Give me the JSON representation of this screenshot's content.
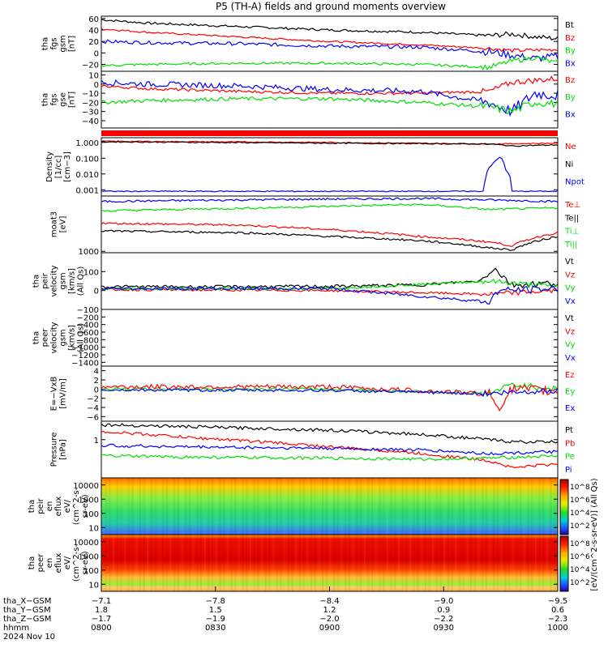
{
  "title": "P5 (TH-A) fields and ground moments overview",
  "colors": {
    "black": "#000000",
    "red": "#ff0000",
    "green": "#00dd00",
    "blue": "#0000ff"
  },
  "panels": [
    {
      "id": "fgs-gsm",
      "ylabel": [
        "tha",
        "fgs",
        "gsm",
        "[nT]"
      ],
      "yticks": [
        "60",
        "40",
        "20",
        "0",
        "−20"
      ],
      "ylim": [
        -32,
        64
      ],
      "tickvals": [
        60,
        40,
        20,
        0,
        -20
      ],
      "legend": [
        {
          "text": "Bt",
          "color": "black"
        },
        {
          "text": "Bz",
          "color": "red"
        },
        {
          "text": "By",
          "color": "green"
        },
        {
          "text": "Bx",
          "color": "blue"
        }
      ],
      "series": [
        {
          "color": "black",
          "x": [
            0,
            0.1,
            0.3,
            0.5,
            0.7,
            0.85,
            0.9,
            0.95,
            1
          ],
          "y": [
            58,
            52,
            46,
            40,
            36,
            30,
            33,
            28,
            25
          ],
          "noise": 2
        },
        {
          "color": "red",
          "x": [
            0,
            0.1,
            0.3,
            0.5,
            0.7,
            0.85,
            0.9,
            0.95,
            1
          ],
          "y": [
            42,
            36,
            28,
            20,
            14,
            8,
            4,
            5,
            6
          ],
          "noise": 1.5
        },
        {
          "color": "blue",
          "x": [
            0,
            0.1,
            0.3,
            0.5,
            0.7,
            0.85,
            0.9,
            0.95,
            1
          ],
          "y": [
            20,
            18,
            16,
            12,
            10,
            2,
            -4,
            -10,
            -6
          ],
          "noise": 3
        },
        {
          "color": "green",
          "x": [
            0,
            0.1,
            0.3,
            0.5,
            0.7,
            0.85,
            0.9,
            0.95,
            1
          ],
          "y": [
            -22,
            -20,
            -18,
            -18,
            -20,
            -25,
            -14,
            -8,
            -18
          ],
          "noise": 2
        }
      ]
    },
    {
      "id": "fgs-gse",
      "ylabel": [
        "tha",
        "fgs",
        "gse",
        "[nT]"
      ],
      "yticks": [
        "10",
        "0",
        "−10",
        "−20",
        "−30",
        "−40"
      ],
      "ylim": [
        -48,
        14
      ],
      "tickvals": [
        10,
        0,
        -10,
        -20,
        -30,
        -40
      ],
      "legend": [
        {
          "text": "Bz",
          "color": "red"
        },
        {
          "text": "By",
          "color": "green"
        },
        {
          "text": "Bx",
          "color": "blue"
        }
      ],
      "series": [
        {
          "color": "red",
          "x": [
            0,
            0.1,
            0.3,
            0.5,
            0.7,
            0.85,
            0.9,
            0.95,
            1
          ],
          "y": [
            -2,
            -5,
            -8,
            -10,
            -10,
            -8,
            2,
            4,
            6
          ],
          "noise": 1.5
        },
        {
          "color": "blue",
          "x": [
            0,
            0.1,
            0.3,
            0.5,
            0.7,
            0.85,
            0.9,
            0.95,
            1
          ],
          "y": [
            2,
            0,
            -2,
            -6,
            -8,
            -20,
            -30,
            -10,
            -12
          ],
          "noise": 3
        },
        {
          "color": "green",
          "x": [
            0,
            0.1,
            0.3,
            0.5,
            0.7,
            0.85,
            0.9,
            0.95,
            1
          ],
          "y": [
            -20,
            -18,
            -16,
            -16,
            -20,
            -25,
            -30,
            -20,
            -22
          ],
          "noise": 2
        }
      ]
    },
    {
      "id": "density",
      "ylabel": [
        "Density",
        "[1/cc]",
        "[cm−3]"
      ],
      "yticks": [
        "1.000",
        "0.100",
        "0.010",
        "0.001"
      ],
      "log": true,
      "ylim": [
        0.0004,
        2
      ],
      "tickvals": [
        1,
        0.1,
        0.01,
        0.001
      ],
      "legend": [
        {
          "text": "Ne",
          "color": "red"
        },
        {
          "text": "Ni",
          "color": "black"
        },
        {
          "text": "Npot",
          "color": "blue"
        }
      ],
      "series": [
        {
          "color": "red",
          "x": [
            0,
            0.5,
            0.85,
            1
          ],
          "y": [
            1.2,
            1.0,
            0.8,
            0.9
          ],
          "noise": 0
        },
        {
          "color": "black",
          "x": [
            0,
            0.5,
            0.85,
            0.9,
            1
          ],
          "y": [
            1.1,
            0.9,
            0.8,
            0.6,
            0.7
          ],
          "noise": 0
        },
        {
          "color": "blue",
          "x": [
            0.84,
            0.86,
            0.875,
            0.885,
            0.9
          ],
          "y": [
            0.002,
            0.05,
            0.12,
            0.02,
            0.0008
          ],
          "noise": 0
        }
      ]
    },
    {
      "id": "temperature",
      "ylabel": [
        "moat3",
        "[eV]"
      ],
      "yticks": [
        "1000"
      ],
      "ylim": [
        900,
        60000
      ],
      "log": true,
      "tickvals": [
        1000
      ],
      "legend": [
        {
          "text": "Te⊥",
          "color": "red"
        },
        {
          "text": "Te||",
          "color": "black"
        },
        {
          "text": "Ti⊥",
          "color": "green"
        },
        {
          "text": "Ti||",
          "color": "green"
        }
      ],
      "series": [
        {
          "color": "blue",
          "x": [
            0,
            0.3,
            0.5,
            0.7,
            0.85,
            1
          ],
          "y": [
            40000,
            45000,
            48000,
            50000,
            45000,
            40000
          ],
          "noise": 0
        },
        {
          "color": "green",
          "x": [
            0,
            0.3,
            0.5,
            0.7,
            0.85,
            1
          ],
          "y": [
            20000,
            24000,
            28000,
            32000,
            22000,
            25000
          ],
          "noise": 0
        },
        {
          "color": "red",
          "x": [
            0,
            0.3,
            0.5,
            0.7,
            0.85,
            0.9,
            1
          ],
          "y": [
            8000,
            7000,
            5000,
            3000,
            2000,
            1500,
            4000
          ],
          "noise": 0
        },
        {
          "color": "black",
          "x": [
            0,
            0.3,
            0.5,
            0.7,
            0.85,
            0.9,
            1
          ],
          "y": [
            4500,
            4000,
            3000,
            2200,
            1300,
            1100,
            3000
          ],
          "noise": 0
        }
      ]
    },
    {
      "id": "peir-velocity",
      "ylabel": [
        "tha",
        "peir",
        "velocity",
        "gsm",
        "[km/s]",
        "(All Qs)"
      ],
      "yticks": [
        "100",
        "0",
        "−100"
      ],
      "ylim": [
        -100,
        200
      ],
      "tickvals": [
        100,
        0,
        -100
      ],
      "legend": [
        {
          "text": "Vt",
          "color": "black"
        },
        {
          "text": "Vz",
          "color": "red"
        },
        {
          "text": "Vy",
          "color": "green"
        },
        {
          "text": "Vx",
          "color": "blue"
        }
      ],
      "series": [
        {
          "color": "black",
          "x": [
            0,
            0.3,
            0.5,
            0.7,
            0.83,
            0.86,
            0.9,
            1
          ],
          "y": [
            20,
            20,
            22,
            30,
            50,
            120,
            30,
            40
          ],
          "noise": 8
        },
        {
          "color": "red",
          "x": [
            0,
            0.5,
            0.85,
            1
          ],
          "y": [
            5,
            0,
            -20,
            0
          ],
          "noise": 6
        },
        {
          "color": "green",
          "x": [
            0,
            0.5,
            0.85,
            1
          ],
          "y": [
            10,
            10,
            50,
            20
          ],
          "noise": 6
        },
        {
          "color": "blue",
          "x": [
            0,
            0.5,
            0.85,
            0.87,
            1
          ],
          "y": [
            10,
            10,
            -60,
            0,
            10
          ],
          "noise": 8
        }
      ]
    },
    {
      "id": "peer-velocity",
      "ylabel": [
        "tha",
        "peer",
        "velocity",
        "gsm",
        "[km/s]",
        "(All Qs)"
      ],
      "yticks": [
        "−200",
        "−400",
        "−600",
        "−800",
        "−1000",
        "−1200",
        "−1400"
      ],
      "ylim": [
        -1500,
        0
      ],
      "tickvals": [
        -200,
        -400,
        -600,
        -800,
        -1000,
        -1200,
        -1400
      ],
      "legend": [
        {
          "text": "Vt",
          "color": "black"
        },
        {
          "text": "Vz",
          "color": "red"
        },
        {
          "text": "Vy",
          "color": "green"
        },
        {
          "text": "Vx",
          "color": "blue"
        }
      ],
      "series": []
    },
    {
      "id": "efield",
      "ylabel": [
        "E=−VxB",
        "[mV/m]"
      ],
      "yticks": [
        "4",
        "2",
        "0",
        "−2",
        "−4",
        "−6"
      ],
      "ylim": [
        -7,
        5
      ],
      "tickvals": [
        4,
        2,
        0,
        -2,
        -4,
        -6
      ],
      "legend": [
        {
          "text": "Ez",
          "color": "red"
        },
        {
          "text": "Ey",
          "color": "green"
        },
        {
          "text": "Ex",
          "color": "blue"
        }
      ],
      "series": [
        {
          "color": "green",
          "x": [
            0,
            0.5,
            0.85,
            0.9,
            1
          ],
          "y": [
            0,
            0,
            -1,
            1,
            0
          ],
          "noise": 0.3
        },
        {
          "color": "red",
          "x": [
            0,
            0.5,
            0.85,
            0.87,
            0.9,
            1
          ],
          "y": [
            0.5,
            0.5,
            -1,
            -4,
            0,
            -0.5
          ],
          "noise": 0.5
        },
        {
          "color": "blue",
          "x": [
            0,
            0.5,
            0.85,
            1
          ],
          "y": [
            -0.2,
            -0.3,
            -1,
            -0.2
          ],
          "noise": 0.3
        }
      ]
    },
    {
      "id": "pressure",
      "ylabel": [
        "Pressure",
        "[nPa]"
      ],
      "yticks": [
        "1"
      ],
      "ylim": [
        0.15,
        2.5
      ],
      "log": true,
      "tickvals": [
        1
      ],
      "legend": [
        {
          "text": "Pt",
          "color": "black"
        },
        {
          "text": "Pb",
          "color": "red"
        },
        {
          "text": "Pe",
          "color": "green"
        },
        {
          "text": "Pi",
          "color": "blue"
        }
      ],
      "series": [
        {
          "color": "black",
          "x": [
            0,
            0.2,
            0.5,
            0.7,
            0.85,
            0.9,
            1
          ],
          "y": [
            2.1,
            1.9,
            1.6,
            1.3,
            1.0,
            0.9,
            0.9
          ],
          "noise": 0
        },
        {
          "color": "red",
          "x": [
            0,
            0.2,
            0.5,
            0.7,
            0.85,
            0.9,
            1
          ],
          "y": [
            1.5,
            1.1,
            0.7,
            0.5,
            0.35,
            0.25,
            0.3
          ],
          "noise": 0
        },
        {
          "color": "blue",
          "x": [
            0,
            0.2,
            0.5,
            0.7,
            0.85,
            1
          ],
          "y": [
            0.75,
            0.7,
            0.65,
            0.6,
            0.5,
            0.55
          ],
          "noise": 0
        },
        {
          "color": "green",
          "x": [
            0,
            0.2,
            0.5,
            0.7,
            0.85,
            1
          ],
          "y": [
            0.45,
            0.42,
            0.4,
            0.38,
            0.4,
            0.45
          ],
          "noise": 0
        }
      ]
    },
    {
      "id": "peir-eflux",
      "ylabel": [
        "tha",
        "peir",
        "en",
        "eflux",
        "eV/",
        "(cm^2-s-",
        "sr-eV)"
      ],
      "yticks": [
        "10000",
        "1000",
        "100",
        "10"
      ],
      "spectrogram": true
    },
    {
      "id": "peer-eflux",
      "ylabel": [
        "tha",
        "peer",
        "en",
        "eflux",
        "eV/",
        "(cm^2-s-",
        "sr-eV)"
      ],
      "yticks": [
        "10000",
        "1000",
        "100",
        "10"
      ],
      "spectrogram": true
    }
  ],
  "colorbar": {
    "label": "[eV/(cm^2-s-sr-eV)] (All Qs)",
    "ticks_top": [
      "10^8",
      "10^6",
      "10^4",
      "10^2"
    ],
    "ticks_bottom": [
      "10^8",
      "10^6",
      "10^4",
      "10^2"
    ]
  },
  "xaxis": {
    "tick_labels": [
      "−7.1",
      "−7.8",
      "−8.4",
      "−9.0",
      "−9.5"
    ],
    "rows": [
      {
        "label": "tha_X−GSM",
        "values": [
          "−7.1",
          "−7.8",
          "−8.4",
          "−9.0",
          "−9.5"
        ]
      },
      {
        "label": "tha_Y−GSM",
        "values": [
          "1.8",
          "1.5",
          "1.2",
          "0.9",
          "0.6"
        ]
      },
      {
        "label": "tha_Z−GSM",
        "values": [
          "−1.7",
          "−1.9",
          "−2.0",
          "−2.2",
          "−2.3"
        ]
      },
      {
        "label": "hhmm",
        "values": [
          "0800",
          "0830",
          "0900",
          "0930",
          "1000"
        ]
      }
    ],
    "date": "2024 Nov 10"
  }
}
